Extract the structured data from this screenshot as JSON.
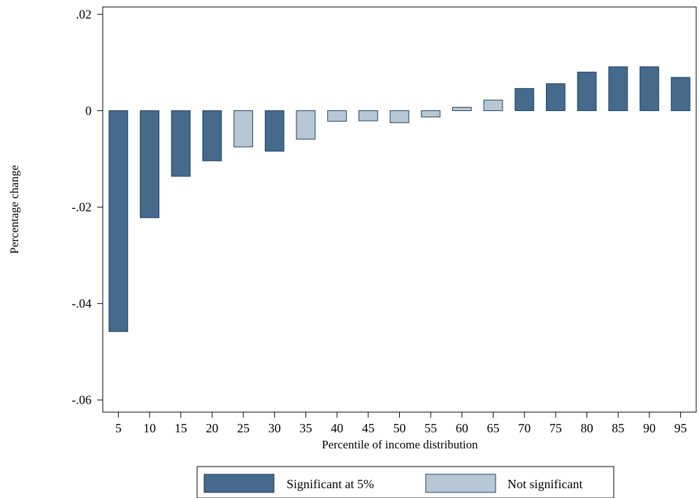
{
  "chart_data": {
    "type": "bar",
    "title": "",
    "xlabel": "Percentile of income distribution",
    "ylabel": "Percentage change",
    "categories": [
      "5",
      "10",
      "15",
      "20",
      "25",
      "30",
      "35",
      "40",
      "45",
      "50",
      "55",
      "60",
      "65",
      "70",
      "75",
      "80",
      "85",
      "90",
      "95"
    ],
    "values": [
      -0.0458,
      -0.0222,
      -0.0136,
      -0.0104,
      -0.0075,
      -0.0084,
      -0.0059,
      -0.0022,
      -0.0021,
      -0.0025,
      -0.0013,
      0.0007,
      0.0022,
      0.0046,
      0.0056,
      0.008,
      0.0091,
      0.0091,
      0.0069
    ],
    "significant": [
      true,
      true,
      true,
      true,
      false,
      true,
      false,
      false,
      false,
      false,
      false,
      false,
      false,
      true,
      true,
      true,
      true,
      true,
      true
    ],
    "ylim": [
      -0.0625,
      0.0215
    ],
    "yticks": [
      0.02,
      0,
      -0.02,
      -0.04,
      -0.06
    ],
    "ytick_labels": [
      ".02",
      "0",
      "-.02",
      "-.04",
      "-.06"
    ],
    "grid": false,
    "legend_position": "bottom",
    "legend": [
      {
        "key": "significant",
        "label": "Significant at 5%",
        "color": "#456a8c"
      },
      {
        "key": "not_significant",
        "label": "Not significant",
        "color": "#b8c7d4"
      }
    ],
    "bar_edge_color": "#1c3f66"
  }
}
